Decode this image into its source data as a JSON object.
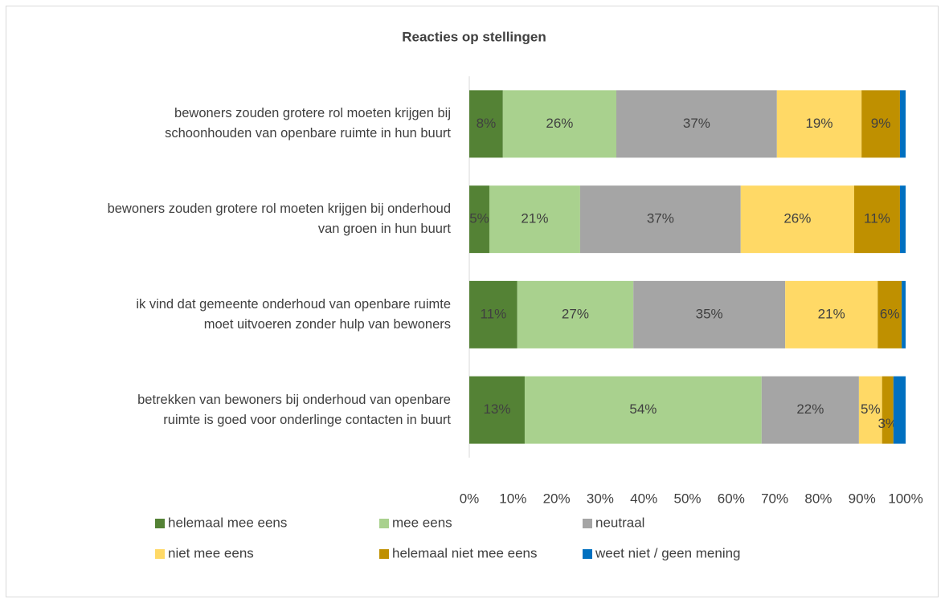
{
  "chart_data": {
    "type": "stacked-bar-horizontal-100",
    "title": "Reacties op stellingen",
    "categories": [
      "bewoners zouden grotere rol moeten krijgen bij\nschoonhouden van openbare ruimte in hun buurt",
      "bewoners zouden grotere rol moeten krijgen bij onderhoud\nvan groen in hun buurt",
      "ik vind dat gemeente onderhoud van openbare ruimte\nmoet uitvoeren zonder hulp van bewoners",
      "betrekken van bewoners bij onderhoud van openbare\nruimte is goed voor onderlinge contacten in buurt"
    ],
    "series": [
      {
        "name": "helemaal mee eens",
        "color": "#548235",
        "values": [
          7.7,
          4.6,
          11.0,
          12.7
        ],
        "value_labels": [
          "8%",
          "5%",
          "11%",
          "13%"
        ]
      },
      {
        "name": "mee eens",
        "color": "#a9d18e",
        "values": [
          26.0,
          20.8,
          26.6,
          54.3
        ],
        "value_labels": [
          "26%",
          "21%",
          "27%",
          "54%"
        ]
      },
      {
        "name": "neutraal",
        "color": "#a5a5a5",
        "values": [
          36.8,
          36.8,
          34.8,
          22.3
        ],
        "value_labels": [
          "37%",
          "37%",
          "35%",
          "22%"
        ]
      },
      {
        "name": "niet mee eens",
        "color": "#ffd966",
        "values": [
          19.4,
          26.0,
          21.2,
          5.3
        ],
        "value_labels": [
          "19%",
          "26%",
          "21%",
          "5%"
        ]
      },
      {
        "name": "helemaal niet mee eens",
        "color": "#bf9000",
        "values": [
          8.8,
          10.5,
          5.5,
          2.6
        ],
        "value_labels": [
          "9%",
          "11%",
          "6%",
          "3%"
        ]
      },
      {
        "name": "weet niet / geen mening",
        "color": "#0070c0",
        "values": [
          1.3,
          1.3,
          0.9,
          2.8
        ]
      }
    ],
    "xlim": [
      0,
      100
    ],
    "xticks": [
      {
        "value": 0,
        "label": "0%"
      },
      {
        "value": 10,
        "label": "10%"
      },
      {
        "value": 20,
        "label": "20%"
      },
      {
        "value": 30,
        "label": "30%"
      },
      {
        "value": 40,
        "label": "40%"
      },
      {
        "value": 50,
        "label": "50%"
      },
      {
        "value": 60,
        "label": "60%"
      },
      {
        "value": 70,
        "label": "70%"
      },
      {
        "value": 80,
        "label": "80%"
      },
      {
        "value": 90,
        "label": "90%"
      },
      {
        "value": 100,
        "label": "100%"
      }
    ],
    "legend": "bottom"
  }
}
